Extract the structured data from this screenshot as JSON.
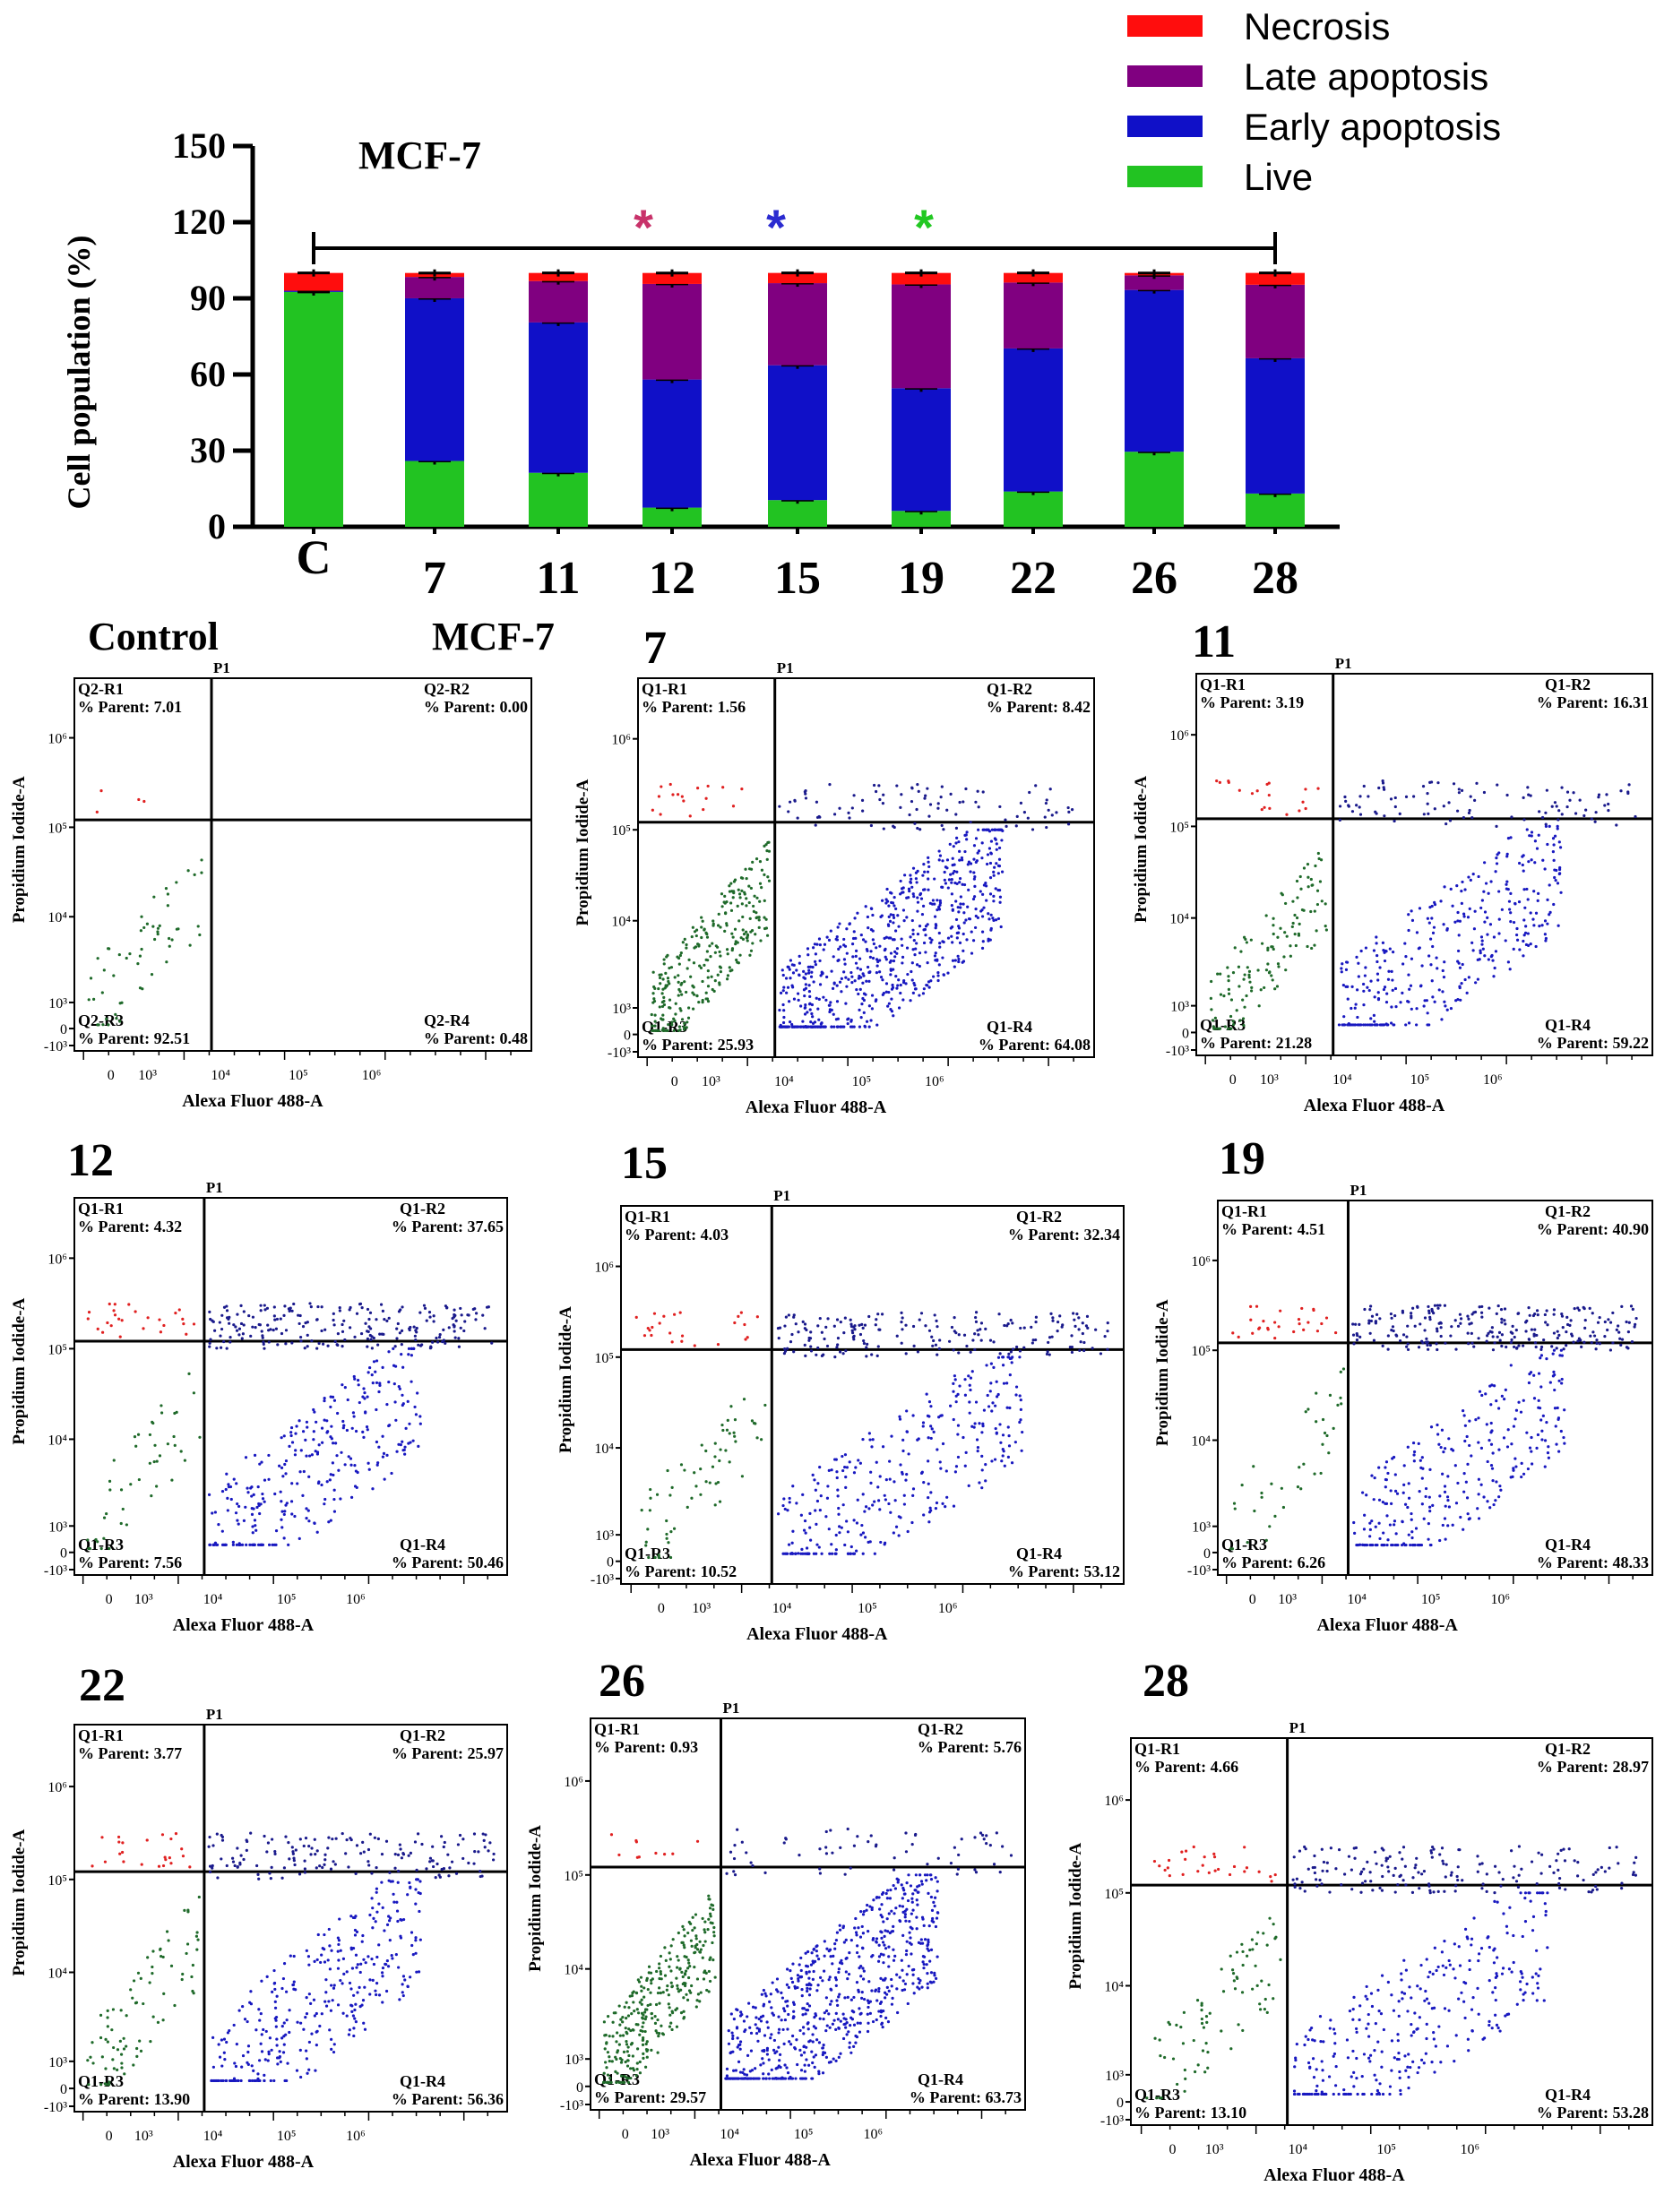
{
  "bar": {
    "title": "MCF-7",
    "ylabel": "Cell population (%)",
    "yticks": [
      "0",
      "30",
      "60",
      "90",
      "120",
      "150"
    ],
    "legend": [
      "Necrosis",
      "Late apoptosis",
      "Early apoptosis",
      "Live"
    ],
    "star": "*",
    "star_colors": [
      "#c8326a",
      "#2b2bd0",
      "#22c822"
    ]
  },
  "colors": {
    "live": "#22c322",
    "early": "#1010c8",
    "late": "#800080",
    "necrosis": "#ff0d0d"
  },
  "chart_data": [
    {
      "type": "bar",
      "stacked": true,
      "title": "MCF-7",
      "ylabel": "Cell population (%)",
      "xlabel": "",
      "ylim": [
        0,
        150
      ],
      "categories": [
        "C",
        "7",
        "11",
        "12",
        "15",
        "19",
        "22",
        "26",
        "28"
      ],
      "series": [
        {
          "name": "Live",
          "values": [
            92.51,
            25.93,
            21.28,
            7.56,
            10.52,
            6.26,
            13.9,
            29.57,
            13.1
          ]
        },
        {
          "name": "Early apoptosis",
          "values": [
            0.48,
            64.08,
            59.22,
            50.46,
            53.12,
            48.33,
            56.36,
            63.73,
            53.28
          ]
        },
        {
          "name": "Late apoptosis",
          "values": [
            0.0,
            8.42,
            16.31,
            37.65,
            32.34,
            40.9,
            25.97,
            5.76,
            28.97
          ]
        },
        {
          "name": "Necrosis",
          "values": [
            7.01,
            1.56,
            3.19,
            4.32,
            4.03,
            4.51,
            3.77,
            0.93,
            4.66
          ]
        }
      ],
      "significance_markers": [
        "12",
        "15",
        "19"
      ],
      "legend_position": "top-right"
    },
    {
      "type": "scatter",
      "panels": [
        {
          "label": "Control",
          "tag": "MCF-7",
          "gate": "P1",
          "quadrants": [
            {
              "name": "Q2-R1",
              "parent": "7.01"
            },
            {
              "name": "Q2-R2",
              "parent": "0.00"
            },
            {
              "name": "Q2-R3",
              "parent": "92.51"
            },
            {
              "name": "Q2-R4",
              "parent": "0.48"
            }
          ]
        },
        {
          "label": "7",
          "tag": "",
          "gate": "P1",
          "quadrants": [
            {
              "name": "Q1-R1",
              "parent": "1.56"
            },
            {
              "name": "Q1-R2",
              "parent": "8.42"
            },
            {
              "name": "Q1-R3",
              "parent": "25.93"
            },
            {
              "name": "Q1-R4",
              "parent": "64.08"
            }
          ]
        },
        {
          "label": "11",
          "tag": "",
          "gate": "P1",
          "quadrants": [
            {
              "name": "Q1-R1",
              "parent": "3.19"
            },
            {
              "name": "Q1-R2",
              "parent": "16.31"
            },
            {
              "name": "Q1-R3",
              "parent": "21.28"
            },
            {
              "name": "Q1-R4",
              "parent": "59.22"
            }
          ]
        },
        {
          "label": "12",
          "tag": "",
          "gate": "P1",
          "quadrants": [
            {
              "name": "Q1-R1",
              "parent": "4.32"
            },
            {
              "name": "Q1-R2",
              "parent": "37.65"
            },
            {
              "name": "Q1-R3",
              "parent": "7.56"
            },
            {
              "name": "Q1-R4",
              "parent": "50.46"
            }
          ]
        },
        {
          "label": "15",
          "tag": "",
          "gate": "P1",
          "quadrants": [
            {
              "name": "Q1-R1",
              "parent": "4.03"
            },
            {
              "name": "Q1-R2",
              "parent": "32.34"
            },
            {
              "name": "Q1-R3",
              "parent": "10.52"
            },
            {
              "name": "Q1-R4",
              "parent": "53.12"
            }
          ]
        },
        {
          "label": "19",
          "tag": "",
          "gate": "P1",
          "quadrants": [
            {
              "name": "Q1-R1",
              "parent": "4.51"
            },
            {
              "name": "Q1-R2",
              "parent": "40.90"
            },
            {
              "name": "Q1-R3",
              "parent": "6.26"
            },
            {
              "name": "Q1-R4",
              "parent": "48.33"
            }
          ]
        },
        {
          "label": "22",
          "tag": "",
          "gate": "P1",
          "quadrants": [
            {
              "name": "Q1-R1",
              "parent": "3.77"
            },
            {
              "name": "Q1-R2",
              "parent": "25.97"
            },
            {
              "name": "Q1-R3",
              "parent": "13.90"
            },
            {
              "name": "Q1-R4",
              "parent": "56.36"
            }
          ]
        },
        {
          "label": "26",
          "tag": "",
          "gate": "P1",
          "quadrants": [
            {
              "name": "Q1-R1",
              "parent": "0.93"
            },
            {
              "name": "Q1-R2",
              "parent": "5.76"
            },
            {
              "name": "Q1-R3",
              "parent": "29.57"
            },
            {
              "name": "Q1-R4",
              "parent": "63.73"
            }
          ]
        },
        {
          "label": "28",
          "tag": "",
          "gate": "P1",
          "quadrants": [
            {
              "name": "Q1-R1",
              "parent": "4.66"
            },
            {
              "name": "Q1-R2",
              "parent": "28.97"
            },
            {
              "name": "Q1-R3",
              "parent": "13.10"
            },
            {
              "name": "Q1-R4",
              "parent": "53.28"
            }
          ]
        }
      ],
      "xlabel": "Alexa Fluor 488-A",
      "ylabel": "Propidium Iodide-A",
      "parent_prefix": "% Parent: ",
      "xticks": [
        "0",
        "10³",
        "10⁴",
        "10⁵",
        "10⁶"
      ],
      "yticks": [
        "10⁶",
        "10⁵",
        "10⁴",
        "10³",
        "0",
        "-10³"
      ]
    }
  ]
}
